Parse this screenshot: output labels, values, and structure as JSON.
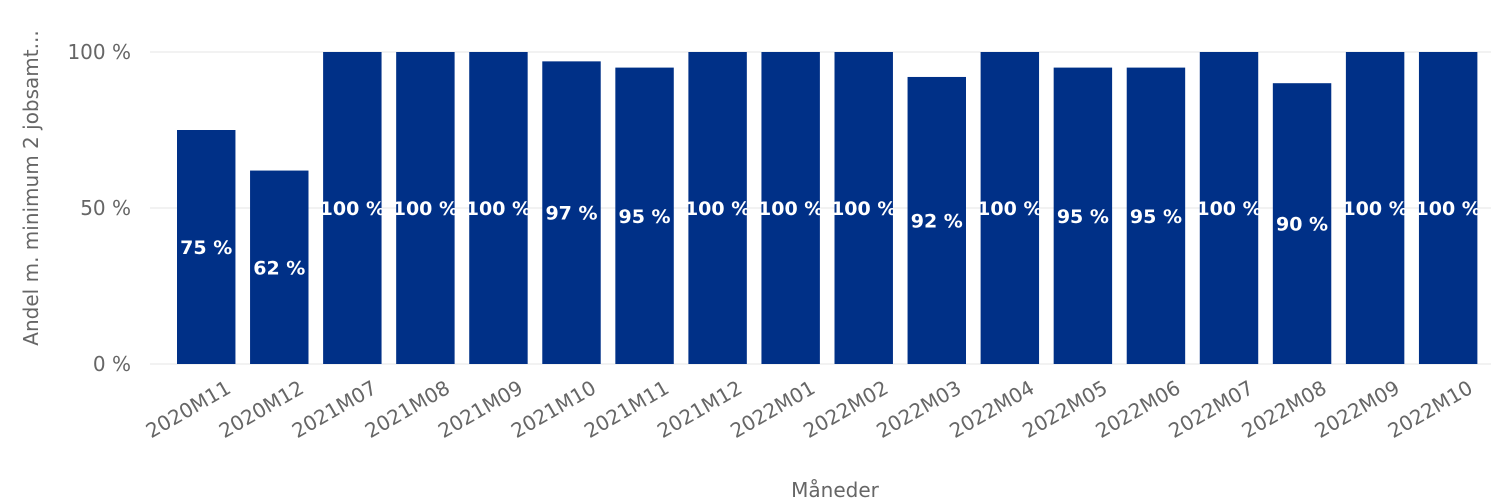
{
  "chart_data": {
    "type": "bar",
    "xlabel": "Måneder",
    "ylabel": "Andel m. minimum 2 jobsamt...",
    "categories": [
      "2020M11",
      "2020M12",
      "2021M07",
      "2021M08",
      "2021M09",
      "2021M10",
      "2021M11",
      "2021M12",
      "2022M01",
      "2022M02",
      "2022M03",
      "2022M04",
      "2022M05",
      "2022M06",
      "2022M07",
      "2022M08",
      "2022M09",
      "2022M10"
    ],
    "values": [
      75,
      62,
      100,
      100,
      100,
      97,
      95,
      100,
      100,
      100,
      92,
      100,
      95,
      95,
      100,
      90,
      100,
      100
    ],
    "data_labels": [
      "75 %",
      "62 %",
      "100 %",
      "100 %",
      "100 %",
      "97 %",
      "95 %",
      "100 %",
      "100 %",
      "100 %",
      "92 %",
      "100 %",
      "95 %",
      "95 %",
      "100 %",
      "90 %",
      "100 %",
      "100 %"
    ],
    "ylim": [
      0,
      100
    ],
    "yticks": [
      0,
      50,
      100
    ],
    "ytick_labels": [
      "0 %",
      "50 %",
      "100 %"
    ],
    "grid": true,
    "bar_color": "#003087",
    "label_color": "#ffffff"
  }
}
